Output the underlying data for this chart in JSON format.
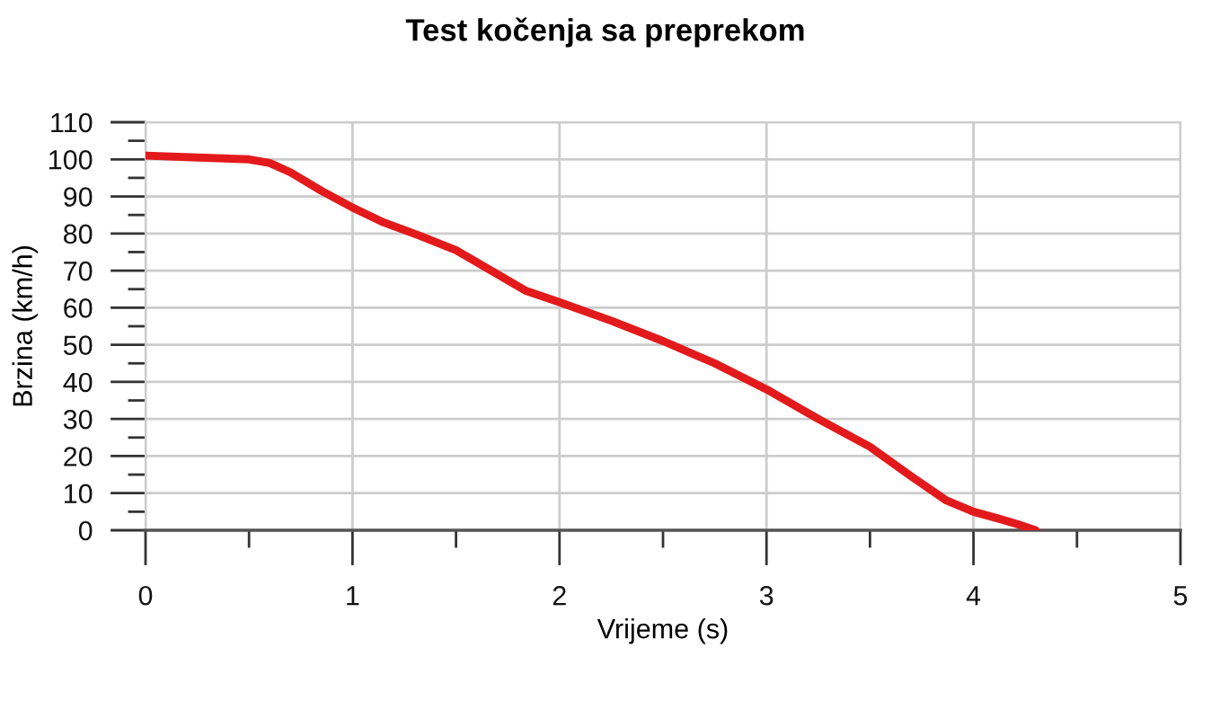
{
  "chart_data": {
    "type": "line",
    "title": "Test kočenja sa preprekom",
    "xlabel": "Vrijeme (s)",
    "ylabel": "Brzina (km/h)",
    "series": [
      {
        "color": "#e31a1c",
        "x": [
          0,
          0.25,
          0.5,
          0.6,
          0.7,
          0.85,
          1.0,
          1.15,
          1.32,
          1.5,
          1.67,
          1.84,
          2.0,
          2.25,
          2.5,
          2.75,
          3.0,
          3.25,
          3.5,
          3.7,
          3.87,
          4.0,
          4.13,
          4.22,
          4.3
        ],
        "values": [
          101,
          100.5,
          100,
          99,
          96.5,
          91.5,
          87,
          83,
          79.5,
          75.5,
          70,
          64.5,
          61.5,
          56.5,
          51,
          45,
          38,
          30,
          22.5,
          14.5,
          8,
          5,
          3,
          1.5,
          0
        ]
      }
    ],
    "xlim": [
      0,
      5
    ],
    "ylim": [
      0,
      110
    ],
    "xticks": [
      0,
      {
        "value": 0.5,
        "label": null
      },
      1,
      {
        "value": 1.5,
        "label": null
      },
      2,
      {
        "value": 2.5,
        "label": null
      },
      3,
      {
        "value": 3.5,
        "label": null
      },
      4,
      {
        "value": 4.5,
        "label": null
      },
      5
    ],
    "yticks": [
      0,
      {
        "value": 5,
        "label": null
      },
      10,
      {
        "value": 15,
        "label": null
      },
      20,
      {
        "value": 25,
        "label": null
      },
      30,
      {
        "value": 35,
        "label": null
      },
      40,
      {
        "value": 45,
        "label": null
      },
      50,
      {
        "value": 55,
        "label": null
      },
      60,
      {
        "value": 65,
        "label": null
      },
      70,
      {
        "value": 75,
        "label": null
      },
      80,
      {
        "value": 85,
        "label": null
      },
      90,
      {
        "value": 95,
        "label": null
      },
      100,
      {
        "value": 105,
        "label": null
      },
      110
    ],
    "grid": true,
    "line_style": "solid"
  }
}
